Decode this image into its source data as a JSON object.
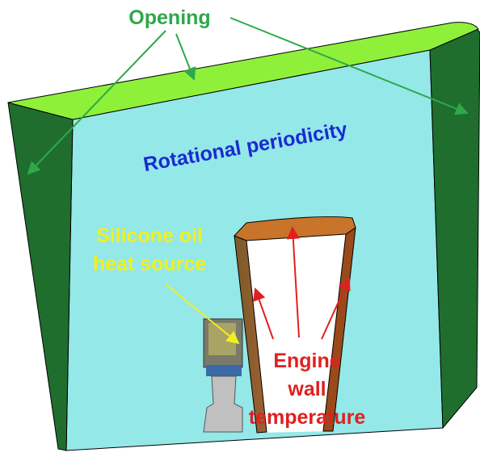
{
  "labels": {
    "opening": "Opening",
    "periodicity": "Rotational periodicity",
    "heat_source": [
      "Silicone oil",
      "heat source"
    ],
    "engine_wall": [
      "Engine",
      "wall",
      "temperature"
    ]
  }
}
